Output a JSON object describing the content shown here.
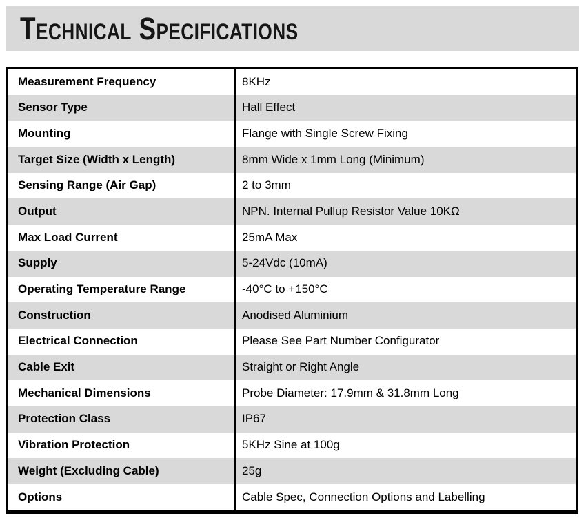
{
  "header": {
    "title": "Technical Specifications"
  },
  "colors": {
    "banner_bg": "#d9d9d9",
    "row_alt_bg": "#d9d9d9",
    "border": "#000000",
    "text": "#000000"
  },
  "table": {
    "rows": [
      {
        "label": "Measurement Frequency",
        "value": "8KHz"
      },
      {
        "label": "Sensor Type",
        "value": "Hall Effect"
      },
      {
        "label": "Mounting",
        "value": "Flange with Single Screw Fixing"
      },
      {
        "label": "Target Size (Width x Length)",
        "value": "8mm Wide x 1mm Long (Minimum)"
      },
      {
        "label": "Sensing Range (Air Gap)",
        "value": "2 to 3mm"
      },
      {
        "label": "Output",
        "value": "NPN. Internal Pullup Resistor Value 10KΩ"
      },
      {
        "label": "Max Load Current",
        "value": "25mA Max"
      },
      {
        "label": "Supply",
        "value": "5-24Vdc (10mA)"
      },
      {
        "label": "Operating Temperature Range",
        "value": "-40°C to +150°C"
      },
      {
        "label": "Construction",
        "value": "Anodised Aluminium"
      },
      {
        "label": "Electrical Connection",
        "value": "Please See Part Number Configurator"
      },
      {
        "label": "Cable Exit",
        "value": "Straight or Right Angle"
      },
      {
        "label": "Mechanical Dimensions",
        "value": "Probe Diameter: 17.9mm & 31.8mm Long"
      },
      {
        "label": "Protection Class",
        "value": "IP67"
      },
      {
        "label": "Vibration Protection",
        "value": "5KHz Sine at 100g"
      },
      {
        "label": "Weight (Excluding Cable)",
        "value": "25g"
      },
      {
        "label": "Options",
        "value": "Cable Spec, Connection Options and Labelling"
      }
    ]
  }
}
